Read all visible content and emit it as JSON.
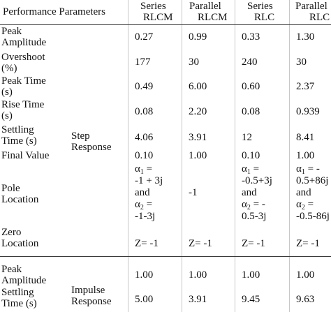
{
  "header": {
    "perf": "Performance Parameters",
    "c1a": "Series",
    "c1b": "RLCM",
    "c2a": "Parallel",
    "c2b": "RLCM",
    "c3a": "Series",
    "c3b": "RLC",
    "c4a": "Parallel",
    "c4b": "RLC"
  },
  "groups": {
    "step_a": "Step",
    "step_b": "Response",
    "impulse_a": "Impulse",
    "impulse_b": "Response"
  },
  "rows": [
    {
      "p1": "Peak",
      "p2": "Amplitude",
      "v": [
        "0.27",
        "0.99",
        "0.33",
        "1.30"
      ]
    },
    {
      "p1": "Overshoot",
      "p2": "(%)",
      "v": [
        "177",
        "30",
        "240",
        "30"
      ]
    },
    {
      "p1": "Peak Time",
      "p2": "(s)",
      "v": [
        "0.49",
        "6.00",
        "0.60",
        "2.37"
      ]
    },
    {
      "p1": "Rise Time",
      "p2": "(s)",
      "v": [
        "0.08",
        "2.20",
        "0.08",
        "0.939"
      ]
    },
    {
      "p1": "Settling",
      "p2": "Time (s)",
      "v": [
        "4.06",
        "3.91",
        "12",
        "8.41"
      ]
    },
    {
      "p1": "Final Value",
      "p2": "",
      "v": [
        "0.10",
        "1.00",
        "0.10",
        "1.00"
      ]
    }
  ],
  "pole": {
    "label1": "Pole",
    "label2": "Location",
    "c1": [
      "α",
      "1",
      " =",
      "-1 + 3j",
      "and",
      "α",
      "2",
      " =",
      "-1-3j"
    ],
    "c2": "-1",
    "c3": [
      "α",
      "1",
      " =",
      "-0.5+3j",
      "and",
      "α",
      "2",
      " = -",
      "0.5-3j"
    ],
    "c4": [
      "α",
      "1",
      " = -",
      "0.5+86j",
      "and",
      "α",
      "2",
      " =",
      "-0.5-86j"
    ]
  },
  "zero": {
    "label1": "Zero",
    "label2": "Location",
    "v": [
      "Z= -1",
      "Z= -1",
      "Z= -1",
      "Z= -1"
    ]
  },
  "impulse_rows": [
    {
      "p1": "Peak",
      "p2": "Amplitude",
      "v": [
        "1.00",
        "1.00",
        "1.00",
        "1.00"
      ]
    },
    {
      "p1": "Settling",
      "p2": "Time (s)",
      "v": [
        "5.00",
        "3.91",
        "9.45",
        "9.63"
      ]
    }
  ]
}
